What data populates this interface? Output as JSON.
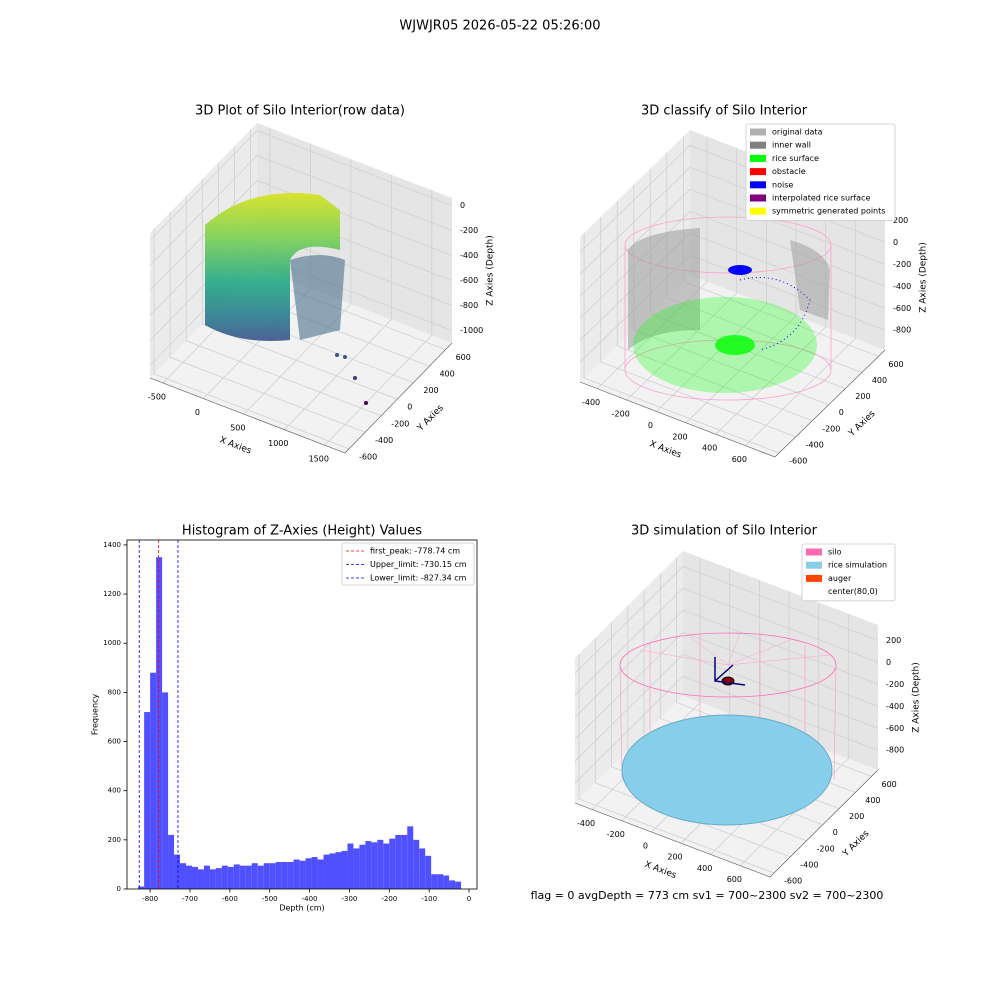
{
  "title": "WJWJR05 2026-05-22 05:26:00",
  "footer": "flag = 0     avgDepth = 773 cm  sv1 = 700~2300  sv2 = 700~2300",
  "chart_data": [
    {
      "type": "scatter3d",
      "title": "3D Plot of Silo Interior(row data)",
      "xlabel": "X Axies",
      "ylabel": "Y Axies",
      "zlabel": "Z Axies (Depth)",
      "xlim": [
        -660,
        1750
      ],
      "ylim": [
        -650,
        680
      ],
      "zlim": [
        -1100,
        60
      ],
      "xticks": [
        -500,
        0,
        500,
        1000,
        1500
      ],
      "yticks": [
        -600,
        -400,
        -200,
        0,
        200,
        400,
        600
      ],
      "zticks": [
        0,
        -200,
        -400,
        -600,
        -800,
        -1000
      ]
    },
    {
      "type": "scatter3d",
      "title": "3D classify of Silo Interior",
      "xlabel": "X Axies",
      "ylabel": "Y Axies",
      "zlabel": "Z Axies (Depth)",
      "xlim": [
        -515,
        800
      ],
      "ylim": [
        -650,
        680
      ],
      "zlim": [
        -980,
        340
      ],
      "xticks": [
        -400,
        -200,
        0,
        200,
        400,
        600
      ],
      "yticks": [
        -600,
        -400,
        -200,
        0,
        200,
        400,
        600
      ],
      "zticks": [
        200,
        0,
        -200,
        -400,
        -600,
        -800
      ],
      "legend": "upper right",
      "series": [
        {
          "name": "original data",
          "color": "#b0b0b0"
        },
        {
          "name": "inner wall",
          "color": "#808080"
        },
        {
          "name": "rice surface",
          "color": "#00ff00"
        },
        {
          "name": "obstacle",
          "color": "#ff0000"
        },
        {
          "name": "noise",
          "color": "#0000ff"
        },
        {
          "name": "interpolated rice surface",
          "color": "#800080"
        },
        {
          "name": "symmetric generated points",
          "color": "#ffff00"
        }
      ]
    },
    {
      "type": "histogram",
      "title": "Histogram of Z-Axies (Height) Values",
      "xlabel": "Depth (cm)",
      "ylabel": "Frequency",
      "color": "#5050ff",
      "xlim": [
        -858,
        20
      ],
      "ylim": [
        0,
        1420
      ],
      "xticks": [
        -800,
        -700,
        -600,
        -500,
        -400,
        -300,
        -200,
        -100,
        0
      ],
      "yticks": [
        0,
        200,
        400,
        600,
        800,
        1000,
        1200,
        1400
      ],
      "bins": [
        -830,
        -815,
        -800,
        -785,
        -770,
        -755,
        -740,
        -725,
        -710,
        -695,
        -680,
        -665,
        -650,
        -635,
        -620,
        -605,
        -590,
        -575,
        -560,
        -545,
        -530,
        -515,
        -500,
        -485,
        -470,
        -455,
        -440,
        -425,
        -410,
        -395,
        -380,
        -365,
        -350,
        -335,
        -320,
        -305,
        -290,
        -275,
        -260,
        -245,
        -230,
        -215,
        -200,
        -185,
        -170,
        -155,
        -140,
        -125,
        -110,
        -95,
        -80,
        -65,
        -50,
        -35,
        -20
      ],
      "counts": [
        10,
        720,
        880,
        1350,
        800,
        220,
        140,
        105,
        95,
        90,
        80,
        95,
        80,
        85,
        95,
        90,
        100,
        95,
        95,
        105,
        95,
        105,
        105,
        110,
        110,
        110,
        120,
        115,
        125,
        130,
        120,
        140,
        145,
        150,
        155,
        185,
        165,
        180,
        195,
        190,
        200,
        185,
        205,
        220,
        220,
        255,
        200,
        165,
        135,
        60,
        60,
        55,
        35,
        30
      ],
      "legend": "upper right",
      "vlines": [
        {
          "value": -778.74,
          "label": "first_peak: -778.74 cm",
          "color": "#ff0000"
        },
        {
          "value": -730.15,
          "label": "Upper_limit: -730.15 cm",
          "color": "#0000ff"
        },
        {
          "value": -827.34,
          "label": "Lower_limit: -827.34 cm",
          "color": "#0000ff"
        }
      ]
    },
    {
      "type": "scatter3d",
      "title": "3D simulation of Silo Interior",
      "xlabel": "X Axies",
      "ylabel": "Y Axies",
      "zlabel": "Z Axies (Depth)",
      "xlim": [
        -515,
        800
      ],
      "ylim": [
        -650,
        680
      ],
      "zlim": [
        -980,
        340
      ],
      "xticks": [
        -400,
        -200,
        0,
        200,
        400,
        600
      ],
      "yticks": [
        -600,
        -400,
        -200,
        0,
        200,
        400,
        600
      ],
      "zticks": [
        200,
        0,
        -200,
        -400,
        -600,
        -800
      ],
      "legend": "upper right",
      "series": [
        {
          "name": "silo",
          "color": "#ff69b4"
        },
        {
          "name": "rice simulation",
          "color": "#87ceeb"
        },
        {
          "name": "auger",
          "color": "#ff4500"
        },
        {
          "name": "center(80,0)",
          "color": "#ffffff"
        }
      ]
    }
  ]
}
